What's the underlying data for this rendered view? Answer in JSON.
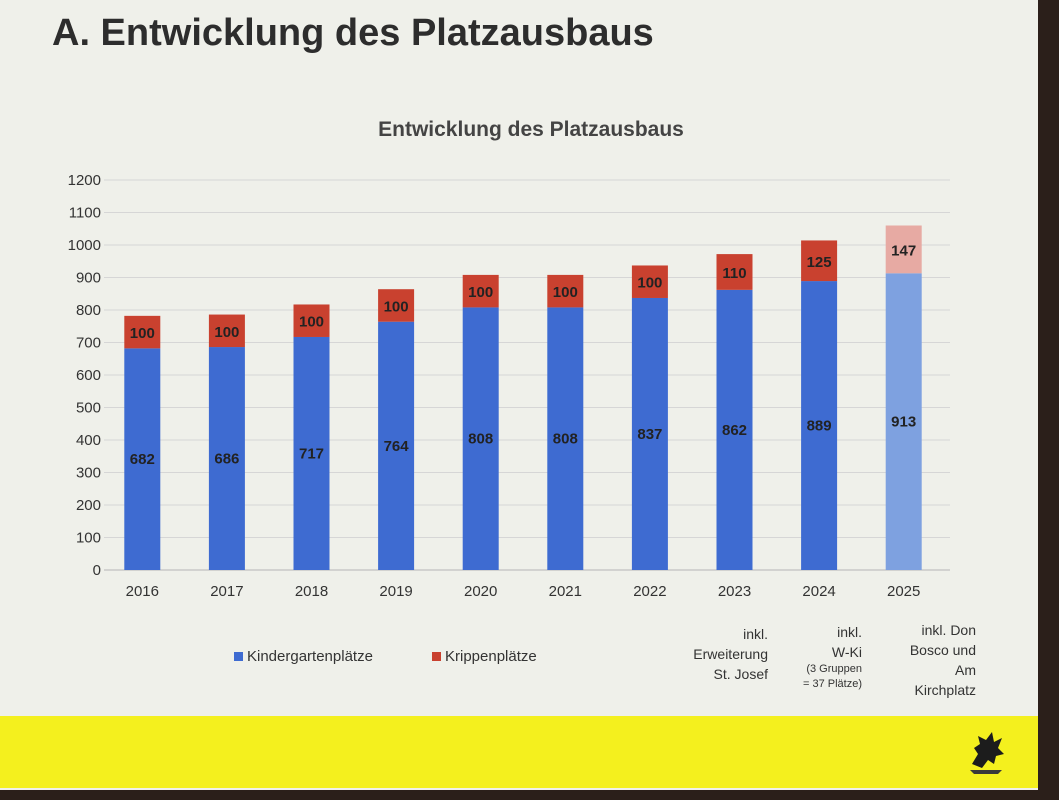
{
  "slide": {
    "title": "A. Entwicklung des Platzausbaus"
  },
  "chart_data": {
    "type": "bar",
    "stacked": true,
    "title": "Entwicklung des Platzausbaus",
    "categories": [
      "2016",
      "2017",
      "2018",
      "2019",
      "2020",
      "2021",
      "2022",
      "2023",
      "2024",
      "2025"
    ],
    "series": [
      {
        "name": "Kindergartenplätze",
        "color": "#3e6bd1",
        "values": [
          682,
          686,
          717,
          764,
          808,
          808,
          837,
          862,
          889,
          913
        ]
      },
      {
        "name": "Krippenplätze",
        "color": "#c9412f",
        "values": [
          100,
          100,
          100,
          100,
          100,
          100,
          100,
          110,
          125,
          147
        ]
      }
    ],
    "highlight": {
      "category": "2025",
      "colors": [
        "#7ea1e0",
        "#e7aaa3"
      ]
    },
    "yticks": [
      "0",
      "100",
      "200",
      "300",
      "400",
      "500",
      "600",
      "700",
      "800",
      "900",
      "1000",
      "1100",
      "1200"
    ],
    "ylim": [
      0,
      1200
    ],
    "grid": true,
    "legend_position": "bottom"
  },
  "annotations": {
    "a2023": {
      "lines": [
        "inkl.",
        "Erweiterung",
        "St. Josef"
      ]
    },
    "a2024": {
      "lines": [
        "inkl.",
        "W-Ki"
      ],
      "sub": [
        "(3 Gruppen",
        "= 37 Plätze)"
      ]
    },
    "a2025": {
      "lines": [
        "inkl. Don",
        "Bosco und",
        "Am",
        "Kirchplatz"
      ]
    }
  },
  "logo": {
    "icon": "griffin-coat-of-arms-icon"
  }
}
